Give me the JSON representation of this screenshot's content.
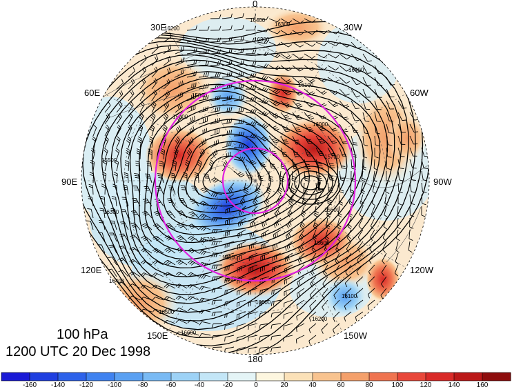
{
  "map": {
    "level": "100 hPa",
    "valid_time": "1200 UTC 20 Dec 1998",
    "longitude_labels": [
      "0",
      "30W",
      "60W",
      "90W",
      "120W",
      "150W",
      "180",
      "150E",
      "120E",
      "90E",
      "60E",
      "30E"
    ],
    "contour_labels": [
      "16400",
      "16300",
      "16300",
      "16400",
      "16200",
      "16100",
      "16000",
      "15900",
      "15800",
      "15700",
      "15600",
      "15700",
      "15800",
      "15900",
      "16000",
      "16100",
      "16200",
      "16300",
      "16400",
      "16500",
      "16600",
      "15500",
      "15600"
    ],
    "pressure_system_labels": [
      "L"
    ],
    "colorbar": {
      "ticks": [
        "-160",
        "-140",
        "-120",
        "-100",
        "-80",
        "-60",
        "-40",
        "-20",
        "0",
        "20",
        "40",
        "60",
        "80",
        "100",
        "120",
        "140",
        "160"
      ],
      "colors": [
        "#1a1ad6",
        "#1f3fe0",
        "#2d62ea",
        "#3f82f0",
        "#5aa0f2",
        "#79baf4",
        "#9dd2f6",
        "#c3e6f7",
        "#e4f4f6",
        "#fdf6df",
        "#fbe1b8",
        "#f8c38f",
        "#f4a06b",
        "#ef7450",
        "#e8473a",
        "#d92a28",
        "#bb1818",
        "#8e0d0d"
      ]
    },
    "colors": {
      "circle": "#e020e0",
      "contour": "#000000",
      "coast": "#555555"
    }
  }
}
